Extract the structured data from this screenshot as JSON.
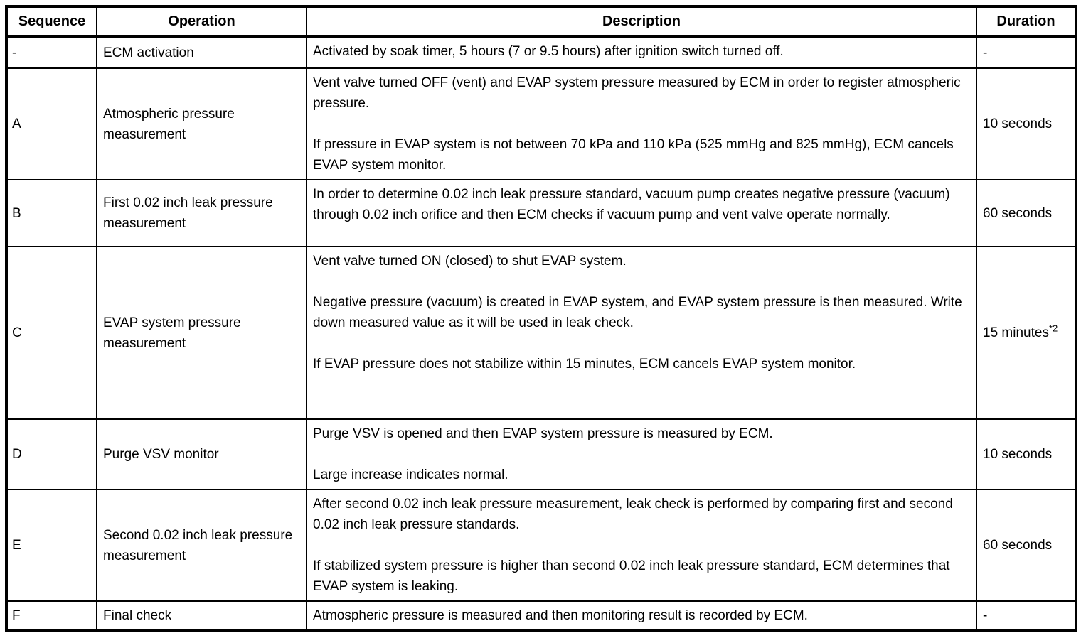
{
  "table": {
    "headers": {
      "sequence": "Sequence",
      "operation": "Operation",
      "description": "Description",
      "duration": "Duration"
    },
    "rows": [
      {
        "sequence": "-",
        "operation": "ECM activation",
        "description": "Activated by soak timer, 5 hours (7 or 9.5 hours) after ignition switch turned off.",
        "duration": "-",
        "duration_note": ""
      },
      {
        "sequence": "A",
        "operation": "Atmospheric pressure measurement",
        "description": "Vent valve turned OFF (vent) and EVAP system pressure measured by ECM in order to register atmospheric pressure.\n\nIf pressure in EVAP system is not between 70 kPa and 110 kPa (525 mmHg and 825 mmHg), ECM cancels EVAP system monitor.",
        "duration": "10 seconds",
        "duration_note": ""
      },
      {
        "sequence": "B",
        "operation": "First 0.02 inch leak pressure measurement",
        "description": "In order to determine 0.02 inch leak pressure standard, vacuum pump creates negative pressure (vacuum) through 0.02 inch orifice and then ECM checks if vacuum pump and vent valve operate normally.",
        "duration": "60 seconds",
        "duration_note": ""
      },
      {
        "sequence": "C",
        "operation": "EVAP system pressure measurement",
        "description": "Vent valve turned ON (closed) to shut EVAP system.\n\nNegative pressure (vacuum) is created in EVAP system, and EVAP system pressure is then measured. Write down measured value as it will be used in leak check.\n\nIf EVAP pressure does not stabilize within 15 minutes, ECM cancels EVAP system monitor.",
        "duration": "15 minutes",
        "duration_note": "*2"
      },
      {
        "sequence": "D",
        "operation": "Purge VSV monitor",
        "description": "Purge VSV is opened and then EVAP system pressure is measured by ECM.\n\nLarge increase indicates normal.",
        "duration": "10 seconds",
        "duration_note": ""
      },
      {
        "sequence": "E",
        "operation": "Second 0.02 inch leak pressure measurement",
        "description": "After second 0.02 inch leak pressure measurement, leak check is performed by comparing first and second 0.02 inch leak pressure standards.\n\nIf stabilized system pressure is higher than second 0.02 inch leak pressure standard, ECM determines that EVAP system is leaking.",
        "duration": "60 seconds",
        "duration_note": ""
      },
      {
        "sequence": "F",
        "operation": "Final check",
        "description": "Atmospheric pressure is measured and then monitoring result is recorded by ECM.",
        "duration": "-",
        "duration_note": ""
      }
    ]
  }
}
